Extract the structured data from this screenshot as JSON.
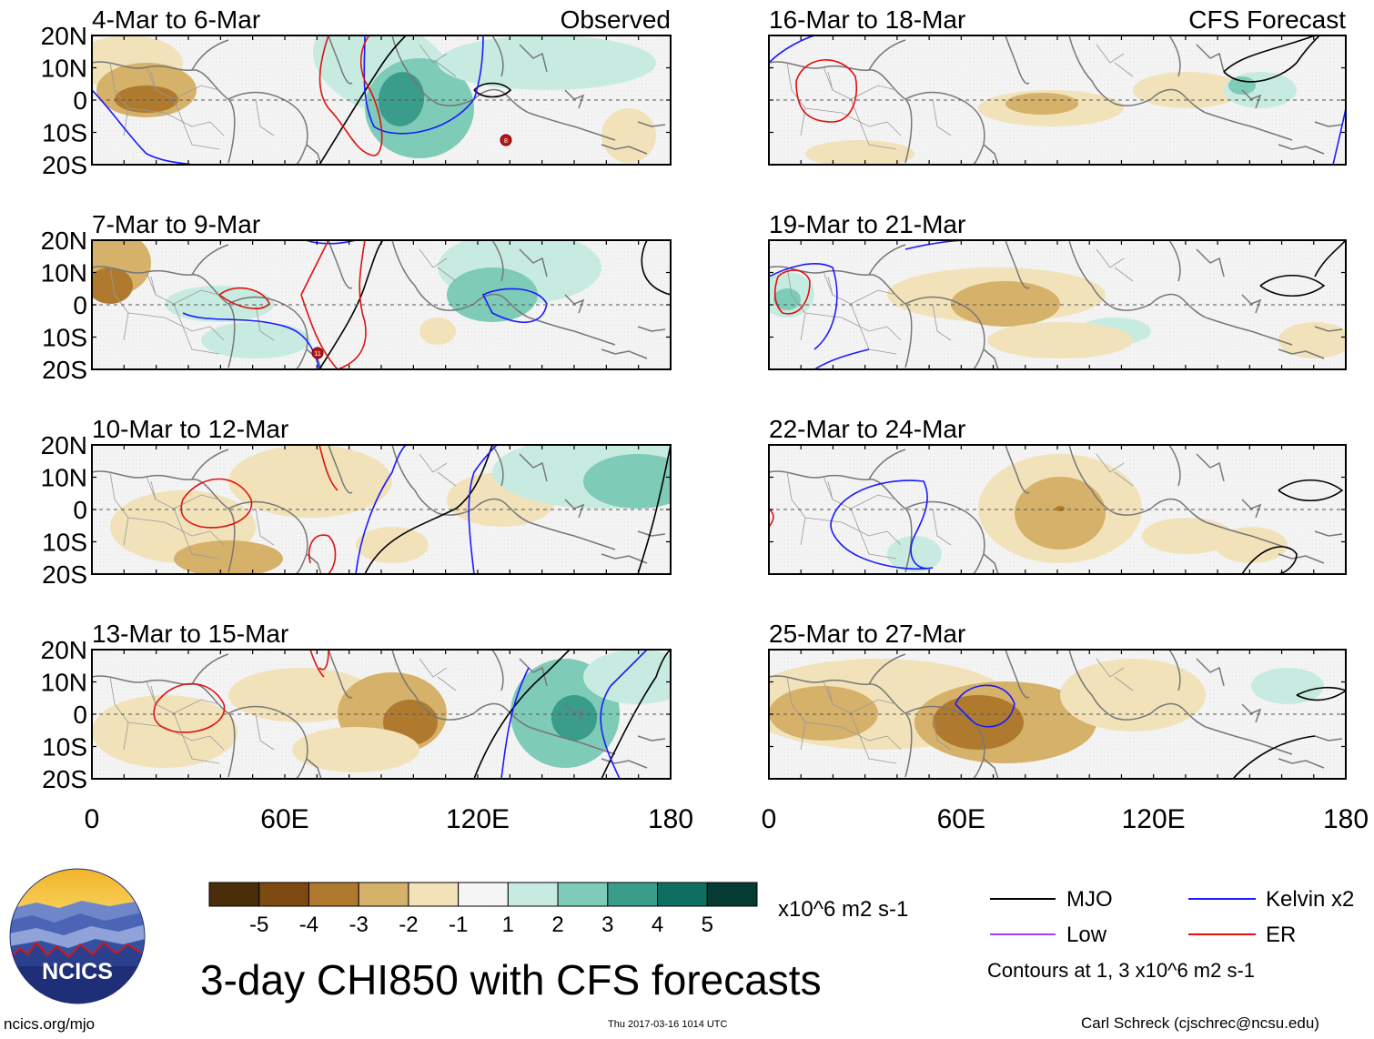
{
  "figure": {
    "title": "3-day CHI850 with CFS forecasts",
    "observed_label": "Observed",
    "forecast_label": "CFS Forecast",
    "footer_left": "ncics.org/mjo",
    "footer_center": "Thu 2017-03-16 1014 UTC",
    "footer_right": "Carl Schreck (cjschrec@ncsu.edu)",
    "logo_text": "NCICS"
  },
  "panels_left": [
    {
      "label": "4-Mar to 6-Mar"
    },
    {
      "label": "7-Mar to 9-Mar"
    },
    {
      "label": "10-Mar to 12-Mar"
    },
    {
      "label": "13-Mar to 15-Mar"
    }
  ],
  "panels_right": [
    {
      "label": "16-Mar to 18-Mar"
    },
    {
      "label": "19-Mar to 21-Mar"
    },
    {
      "label": "22-Mar to 24-Mar"
    },
    {
      "label": "25-Mar to 27-Mar"
    }
  ],
  "axes": {
    "lat_ticks": [
      "20N",
      "10N",
      "0",
      "10S",
      "20S"
    ],
    "lon_ticks": [
      "0",
      "60E",
      "120E",
      "180"
    ]
  },
  "colorbar": {
    "units": "x10^6 m2 s-1",
    "labels": [
      "-5",
      "-4",
      "-3",
      "-2",
      "-1",
      "1",
      "2",
      "3",
      "4",
      "5"
    ],
    "colors": [
      "#4a2e0a",
      "#7d4a12",
      "#b07a2e",
      "#d5b16a",
      "#f1e2ba",
      "#f5f5f5",
      "#c7ebe0",
      "#7ecbb8",
      "#3a9c8b",
      "#0f6e62",
      "#063b33"
    ]
  },
  "legend": {
    "mjo": "MJO",
    "kelvin": "Kelvin x2",
    "low": "Low",
    "er": "ER",
    "mjo_color": "#000000",
    "kelvin_color": "#1a1aff",
    "low_color": "#a040ff",
    "er_color": "#e01010",
    "contours_note": "Contours at 1, 3 x10^6 m2 s-1"
  },
  "storm_markers": [
    {
      "panel": "4-Mar to 6-Mar",
      "label": "8"
    },
    {
      "panel": "7-Mar to 9-Mar",
      "label": "11"
    }
  ]
}
